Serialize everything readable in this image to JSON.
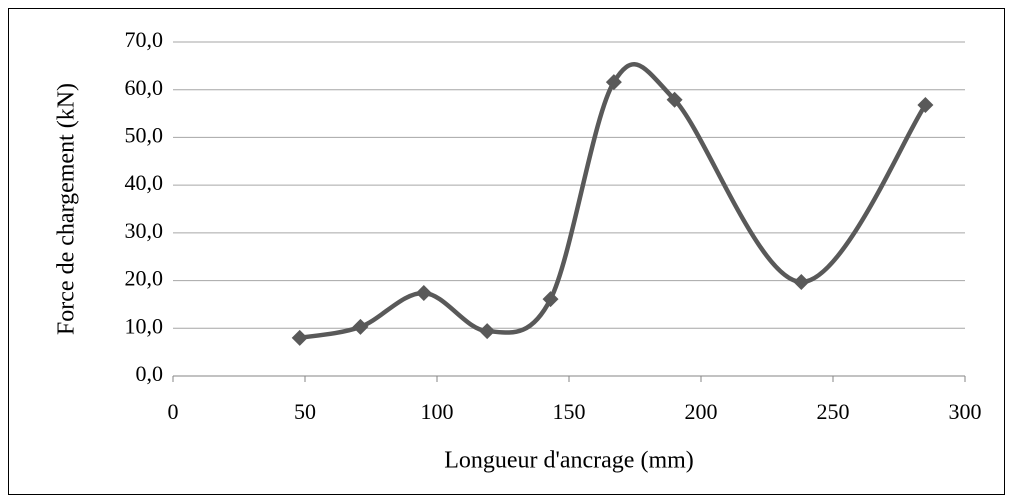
{
  "chart_data": {
    "type": "line",
    "xlabel": "Longueur d'ancrage (mm)",
    "ylabel": "Force de chargement (kN)",
    "x": [
      48,
      71,
      95,
      119,
      143,
      167,
      190,
      238,
      285
    ],
    "series": [
      {
        "color": "#595959",
        "values": [
          8.0,
          10.3,
          17.4,
          9.4,
          16.1,
          61.6,
          57.9,
          19.7,
          56.8
        ]
      }
    ],
    "smooth": true,
    "marker": "diamond",
    "xlim": [
      0,
      300
    ],
    "xticks": [
      0,
      50,
      100,
      150,
      200,
      250,
      300
    ],
    "ylim": [
      0,
      70
    ],
    "yticks": [
      {
        "value": 0,
        "label": "0,0"
      },
      {
        "value": 10,
        "label": "10,0"
      },
      {
        "value": 20,
        "label": "20,0"
      },
      {
        "value": 30,
        "label": "30,0"
      },
      {
        "value": 40,
        "label": "40,0"
      },
      {
        "value": 50,
        "label": "50,0"
      },
      {
        "value": 60,
        "label": "60,0"
      },
      {
        "value": 70,
        "label": "70,0"
      }
    ],
    "grid": true
  }
}
